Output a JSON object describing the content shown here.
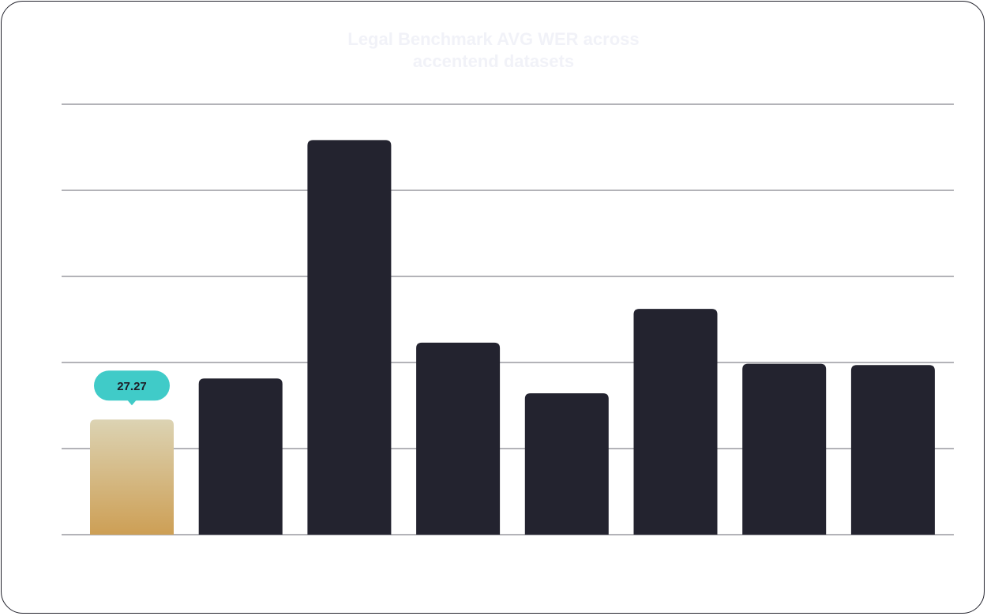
{
  "chart_data": {
    "type": "bar",
    "title_lines": [
      "Legal Benchmark AVG WER across",
      "accentend datasets"
    ],
    "categories": [
      "",
      "",
      "",
      "",
      "",
      "",
      "",
      ""
    ],
    "values": [
      27.27,
      37.0,
      93.5,
      45.5,
      33.5,
      53.5,
      40.5,
      40.2
    ],
    "highlight_index": 0,
    "highlight_label": "27.27",
    "ylim": [
      0,
      102
    ],
    "gridlines": 6,
    "colors": {
      "bar": "#23232f",
      "highlight_top": "#dcd3b3",
      "highlight_bottom": "#cd9f55",
      "badge": "#40cbc8",
      "badge_text": "#1d1d26",
      "grid": "#9a9aa0",
      "title": "#f1f2f8"
    }
  }
}
